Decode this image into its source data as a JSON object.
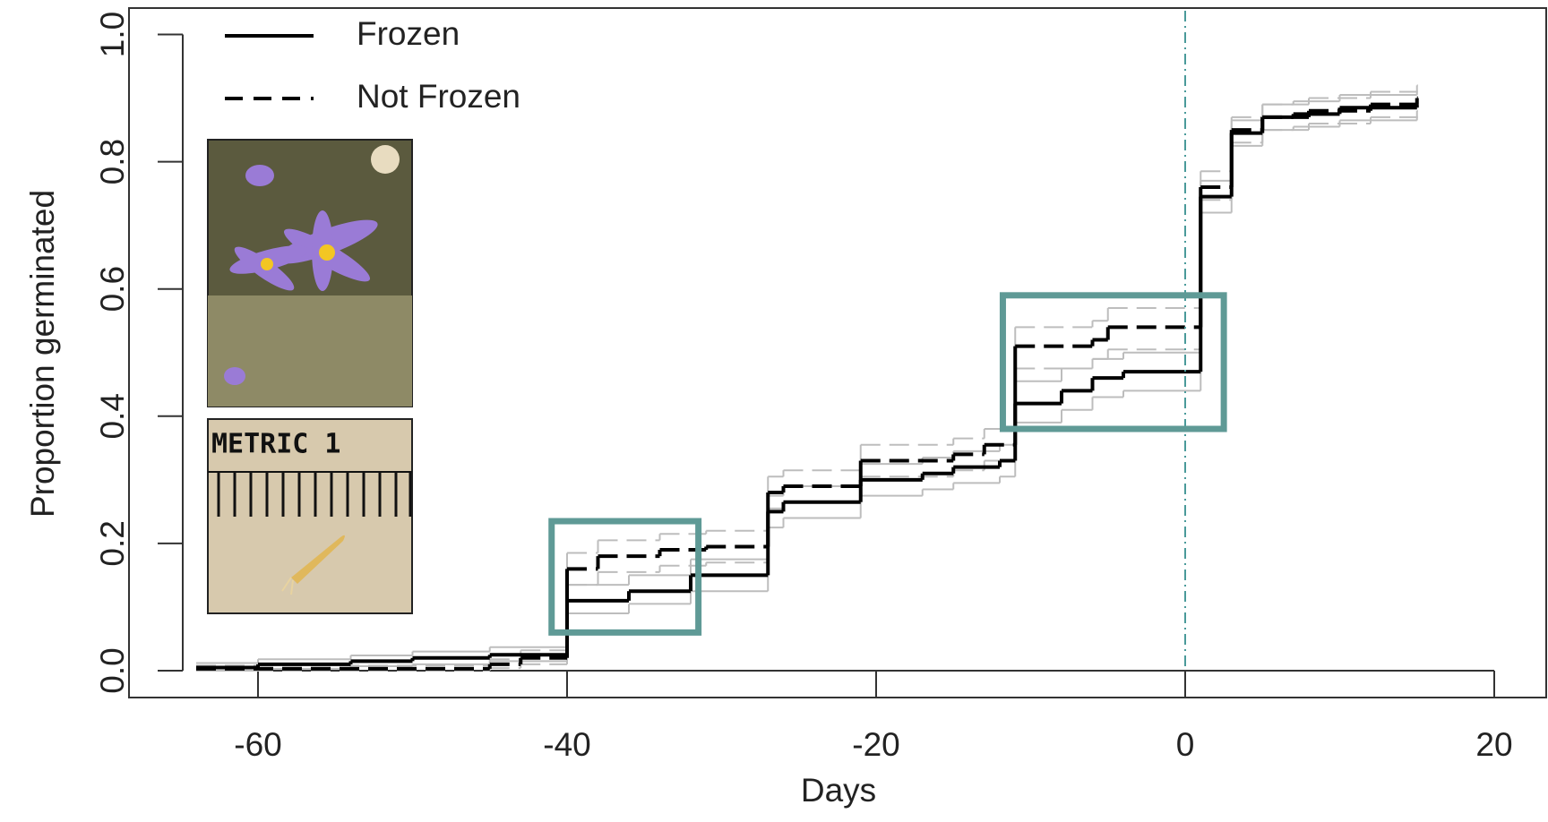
{
  "chart_data": {
    "type": "step",
    "xlabel": "Days",
    "ylabel": "Proportion germinated",
    "xlim": [
      -60,
      20
    ],
    "xticks": [
      -60,
      -40,
      -20,
      0,
      20
    ],
    "ylim": [
      0,
      1
    ],
    "yticks": [
      {
        "value": 0,
        "label": "0.0"
      },
      {
        "value": 0.2,
        "label": "0.2"
      },
      {
        "value": 0.4,
        "label": "0.4"
      },
      {
        "value": 0.6,
        "label": "0.6"
      },
      {
        "value": 0.8,
        "label": "0.8"
      },
      {
        "value": 1,
        "label": "1.0"
      }
    ],
    "legend": "top-left",
    "band_color": "#bdbdbd",
    "vline": 0,
    "vline_color": "#4a9a9a",
    "highlight_color": "#5f9a96",
    "highlights": [
      {
        "xlim": [
          -41,
          -31.5
        ],
        "ylim": [
          0.06,
          0.235
        ]
      },
      {
        "xlim": [
          -11.8,
          2.5
        ],
        "ylim": [
          0.38,
          0.59
        ]
      }
    ],
    "series": [
      {
        "name": "Frozen",
        "color": "#000000",
        "dash": "solid",
        "x": [
          -64,
          -60,
          -54,
          -50,
          -45,
          -40,
          -36,
          -32,
          -27,
          -26,
          -21,
          -17,
          -15,
          -12,
          -11,
          -8,
          -6,
          -4,
          1,
          3,
          5,
          7,
          10,
          15
        ],
        "values": [
          0.005,
          0.01,
          0.015,
          0.02,
          0.025,
          0.11,
          0.125,
          0.15,
          0.25,
          0.265,
          0.3,
          0.31,
          0.32,
          0.33,
          0.42,
          0.44,
          0.46,
          0.47,
          0.745,
          0.845,
          0.87,
          0.875,
          0.885,
          0.89
        ],
        "lower": [
          0,
          0.003,
          0.007,
          0.01,
          0.015,
          0.09,
          0.105,
          0.125,
          0.225,
          0.24,
          0.275,
          0.285,
          0.295,
          0.305,
          0.39,
          0.41,
          0.43,
          0.44,
          0.72,
          0.825,
          0.85,
          0.855,
          0.865,
          0.87
        ],
        "upper": [
          0.012,
          0.018,
          0.024,
          0.03,
          0.037,
          0.135,
          0.15,
          0.175,
          0.275,
          0.29,
          0.325,
          0.335,
          0.345,
          0.355,
          0.455,
          0.475,
          0.49,
          0.5,
          0.77,
          0.865,
          0.89,
          0.895,
          0.905,
          0.91
        ]
      },
      {
        "name": "Not Frozen",
        "color": "#000000",
        "dash": "dashed",
        "x": [
          -64,
          -45,
          -43,
          -40,
          -38,
          -34,
          -31,
          -27,
          -26,
          -21,
          -15,
          -13,
          -11,
          -6,
          -5,
          1,
          3,
          5,
          8,
          12,
          15
        ],
        "values": [
          0.003,
          0.01,
          0.02,
          0.16,
          0.18,
          0.19,
          0.195,
          0.28,
          0.29,
          0.33,
          0.34,
          0.355,
          0.51,
          0.52,
          0.54,
          0.76,
          0.85,
          0.87,
          0.88,
          0.89,
          0.9
        ],
        "lower": [
          0,
          0.004,
          0.01,
          0.135,
          0.155,
          0.165,
          0.17,
          0.255,
          0.265,
          0.305,
          0.315,
          0.33,
          0.475,
          0.49,
          0.505,
          0.74,
          0.83,
          0.85,
          0.86,
          0.87,
          0.88
        ],
        "upper": [
          0.008,
          0.018,
          0.032,
          0.185,
          0.205,
          0.215,
          0.22,
          0.305,
          0.315,
          0.355,
          0.365,
          0.38,
          0.54,
          0.55,
          0.57,
          0.785,
          0.87,
          0.89,
          0.9,
          0.91,
          0.92
        ]
      }
    ]
  }
}
